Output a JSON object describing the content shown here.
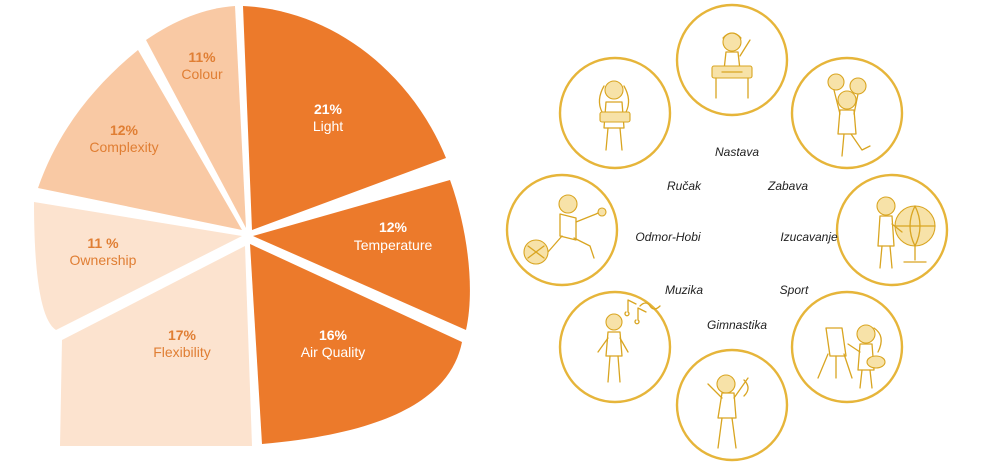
{
  "chart_data": {
    "type": "pie",
    "slices": [
      {
        "pct": "21%",
        "label": "Light",
        "value": 21,
        "color": "#ec7a2b",
        "text_color": "#ffffff"
      },
      {
        "pct": "12%",
        "label": "Temperature",
        "value": 12,
        "color": "#ec7a2b",
        "text_color": "#ffffff"
      },
      {
        "pct": "16%",
        "label": "Air Quality",
        "value": 16,
        "color": "#ec7a2b",
        "text_color": "#ffffff"
      },
      {
        "pct": "17%",
        "label": "Flexibility",
        "value": 17,
        "color": "#fce3cf",
        "text_color": "#e07e33"
      },
      {
        "pct": "11 %",
        "label": "Ownership",
        "value": 11,
        "color": "#fce3cf",
        "text_color": "#e07e33"
      },
      {
        "pct": "12%",
        "label": "Complexity",
        "value": 12,
        "color": "#f9c9a4",
        "text_color": "#e07e33"
      },
      {
        "pct": "11%",
        "label": "Colour",
        "value": 11,
        "color": "#f9c9a4",
        "text_color": "#e07e33"
      }
    ]
  },
  "activities": {
    "ring_color": "#e6b53a",
    "labels": [
      "Nastava",
      "Ručak",
      "Zabava",
      "Odmor-Hobi",
      "Izucavanje",
      "Muzika",
      "Sport",
      "Gimnastika"
    ],
    "circles": [
      {
        "icon": "child-at-desk-icon"
      },
      {
        "icon": "cheerleader-child-icon"
      },
      {
        "icon": "child-with-globe-icon"
      },
      {
        "icon": "child-painting-icon"
      },
      {
        "icon": "child-stretching-icon"
      },
      {
        "icon": "child-with-music-notes-icon"
      },
      {
        "icon": "child-kicking-ball-icon"
      },
      {
        "icon": "child-with-lunch-tray-icon"
      }
    ]
  }
}
